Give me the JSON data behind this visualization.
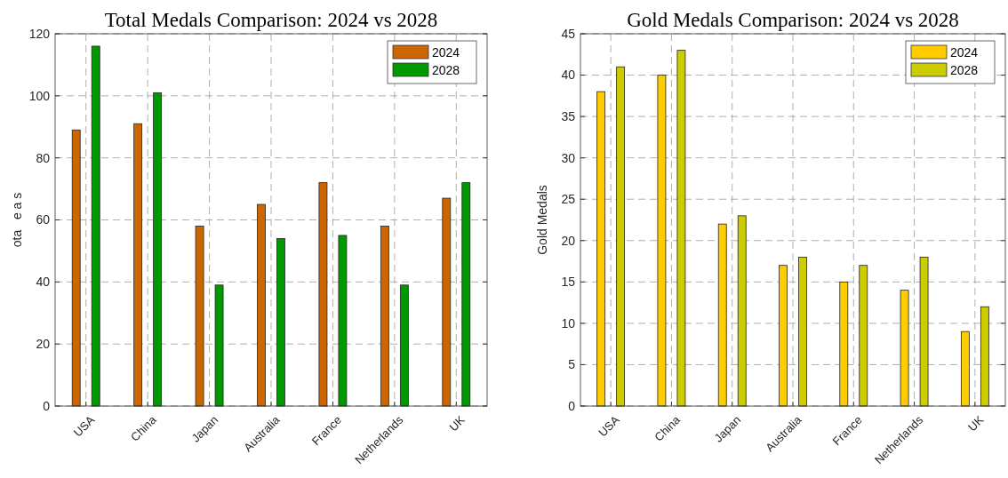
{
  "chart_data": [
    {
      "type": "bar",
      "title": "Total Medals Comparison: 2024 vs 2028",
      "ylabel": "ota   e a s",
      "categories": [
        "USA",
        "China",
        "Japan",
        "Australia",
        "France",
        "Netherlands",
        "UK"
      ],
      "series": [
        {
          "name": "2024",
          "color": "#cc6600",
          "values": [
            89,
            91,
            58,
            65,
            72,
            58,
            67
          ]
        },
        {
          "name": "2028",
          "color": "#009900",
          "values": [
            116,
            101,
            39,
            54,
            55,
            39,
            72
          ]
        }
      ],
      "ylim": [
        0,
        120
      ],
      "yticks": [
        0,
        20,
        40,
        60,
        80,
        100,
        120
      ],
      "grid": true,
      "legend": "top right"
    },
    {
      "type": "bar",
      "title": "Gold Medals Comparison: 2024 vs 2028",
      "ylabel": "Gold Medals",
      "categories": [
        "USA",
        "China",
        "Japan",
        "Australia",
        "France",
        "Netherlands",
        "UK"
      ],
      "series": [
        {
          "name": "2024",
          "color": "#ffcc00",
          "values": [
            38,
            40,
            22,
            17,
            15,
            14,
            9
          ]
        },
        {
          "name": "2028",
          "color": "#cccc00",
          "values": [
            41,
            43,
            23,
            18,
            17,
            18,
            12
          ]
        }
      ],
      "ylim": [
        0,
        45
      ],
      "yticks": [
        0,
        5,
        10,
        15,
        20,
        25,
        30,
        35,
        40,
        45
      ],
      "grid": true,
      "legend": "top right"
    }
  ]
}
